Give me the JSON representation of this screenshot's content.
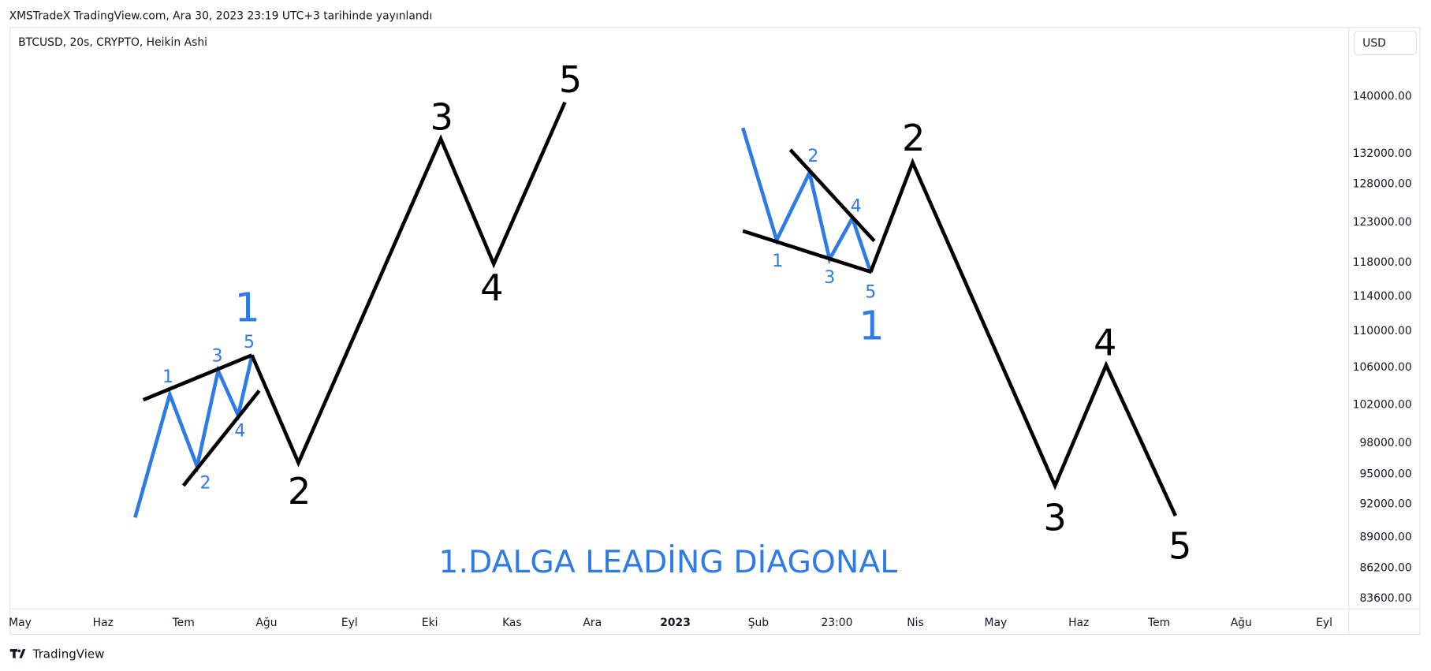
{
  "header": {
    "title": "XMSTradeX TradingView.com, Ara 30, 2023 23:19 UTC+3 tarihinde yayınlandı",
    "symbol": "BTCUSD, 20s, CRYPTO, Heikin Ashi",
    "currency": "USD"
  },
  "price_axis": [
    "140000.00",
    "132000.00",
    "128000.00",
    "123000.00",
    "118000.00",
    "114000.00",
    "110000.00",
    "106000.00",
    "102000.00",
    "98000.00",
    "95000.00",
    "92000.00",
    "89000.00",
    "86200.00",
    "83600.00"
  ],
  "time_axis": [
    "May",
    "Haz",
    "Tem",
    "Ağu",
    "Eyl",
    "Eki",
    "Kas",
    "Ara",
    "2023",
    "Şub",
    "23:00",
    "Nis",
    "May",
    "Haz",
    "Tem",
    "Ağu",
    "Eyl"
  ],
  "left_wave": {
    "sub_labels": [
      "1",
      "2",
      "3",
      "4",
      "5"
    ],
    "degree_label": "1",
    "main_labels": [
      "2",
      "3",
      "4",
      "5"
    ]
  },
  "right_wave": {
    "sub_labels": [
      "1",
      "2",
      "3",
      "4",
      "5"
    ],
    "degree_label": "1",
    "main_labels": [
      "2",
      "3",
      "4",
      "5"
    ]
  },
  "annotation": "1.DALGA LEADİNG DİAGONAL",
  "footer": "TradingView"
}
